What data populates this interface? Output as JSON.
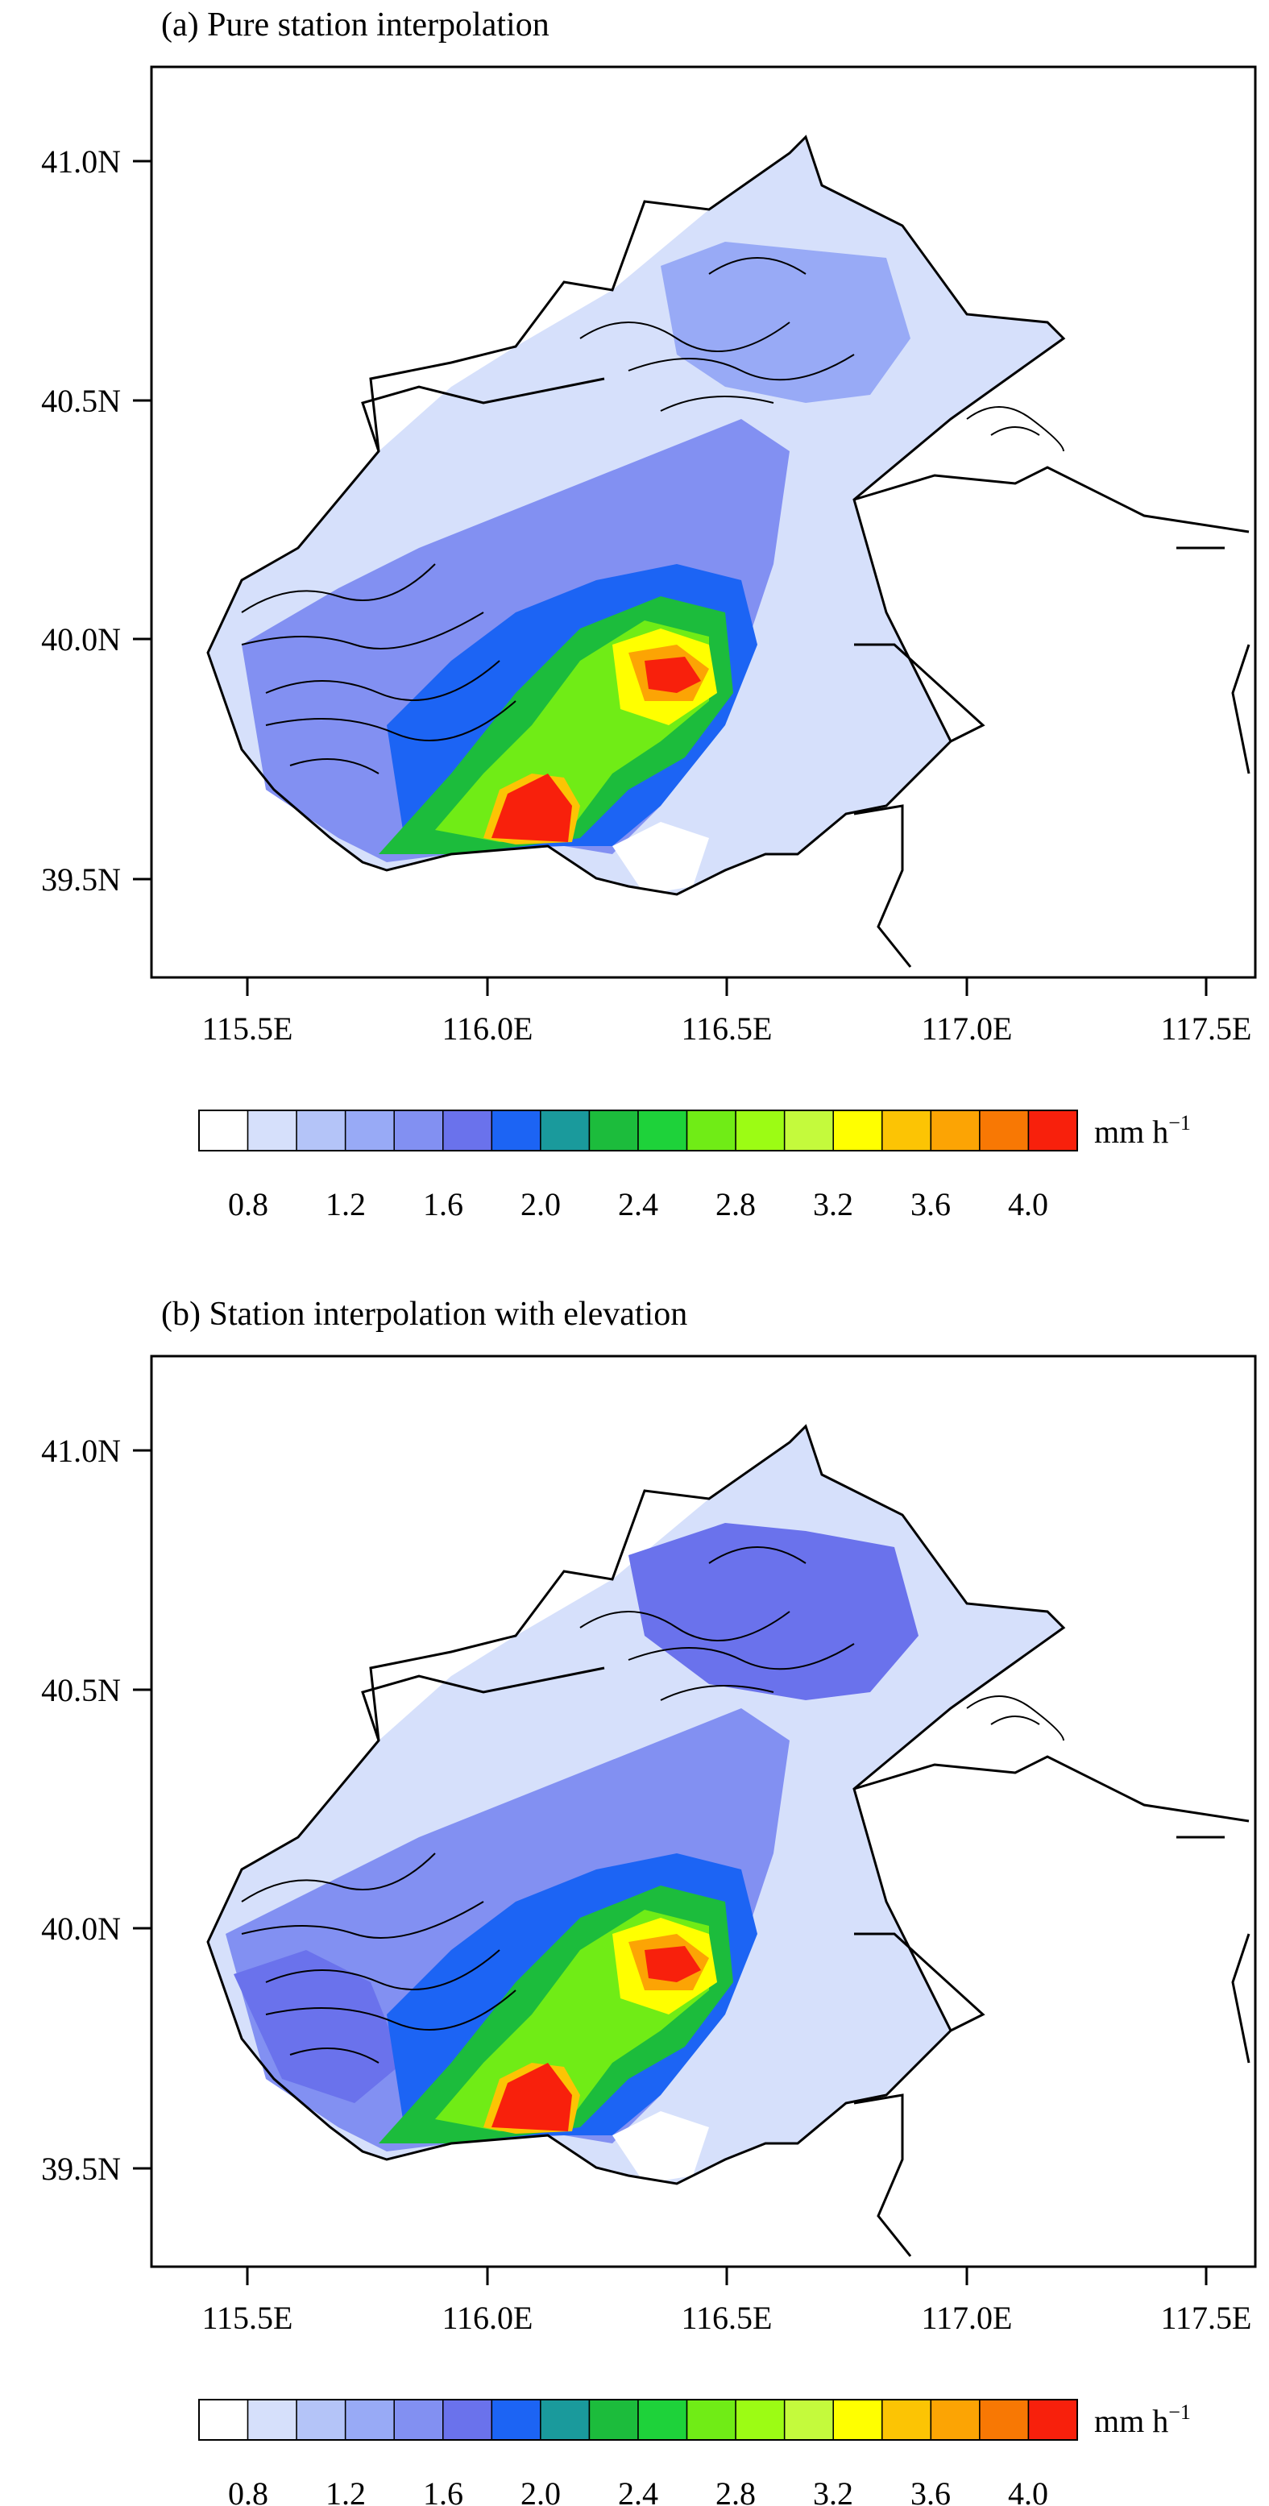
{
  "panels": [
    {
      "title": "(a) Pure station interpolation",
      "x_ticks": [
        "115.5E",
        "116.0E",
        "116.5E",
        "117.0E",
        "117.5E"
      ],
      "y_ticks": [
        "41.0N",
        "40.5N",
        "40.0N",
        "39.5N"
      ],
      "colorbar": {
        "labels": [
          "0.8",
          "1.2",
          "1.6",
          "2.0",
          "2.4",
          "2.8",
          "3.2",
          "3.6",
          "4.0"
        ],
        "units": "mm h",
        "units_sup": "−1"
      }
    },
    {
      "title": "(b) Station interpolation with elevation",
      "x_ticks": [
        "115.5E",
        "116.0E",
        "116.5E",
        "117.0E",
        "117.5E"
      ],
      "y_ticks": [
        "41.0N",
        "40.5N",
        "40.0N",
        "39.5N"
      ],
      "colorbar": {
        "labels": [
          "0.8",
          "1.2",
          "1.6",
          "2.0",
          "2.4",
          "2.8",
          "3.2",
          "3.6",
          "4.0"
        ],
        "units": "mm h",
        "units_sup": "−1"
      }
    }
  ],
  "colorbar_colors": [
    "#ffffff",
    "#d6e0fb",
    "#b4c4f8",
    "#98aaf6",
    "#8290f2",
    "#6a72ec",
    "#1c64f4",
    "#1a9a9c",
    "#1cbc3c",
    "#1ed23a",
    "#70ec16",
    "#9cfc14",
    "#c4fa3c",
    "#ffff00",
    "#fcc404",
    "#fca404",
    "#f87804",
    "#f8200c"
  ],
  "map_colors": {
    "frame": "#000000",
    "boundary": "#000000",
    "low": "#d6e0fb",
    "blue": "#6a72ec"
  }
}
